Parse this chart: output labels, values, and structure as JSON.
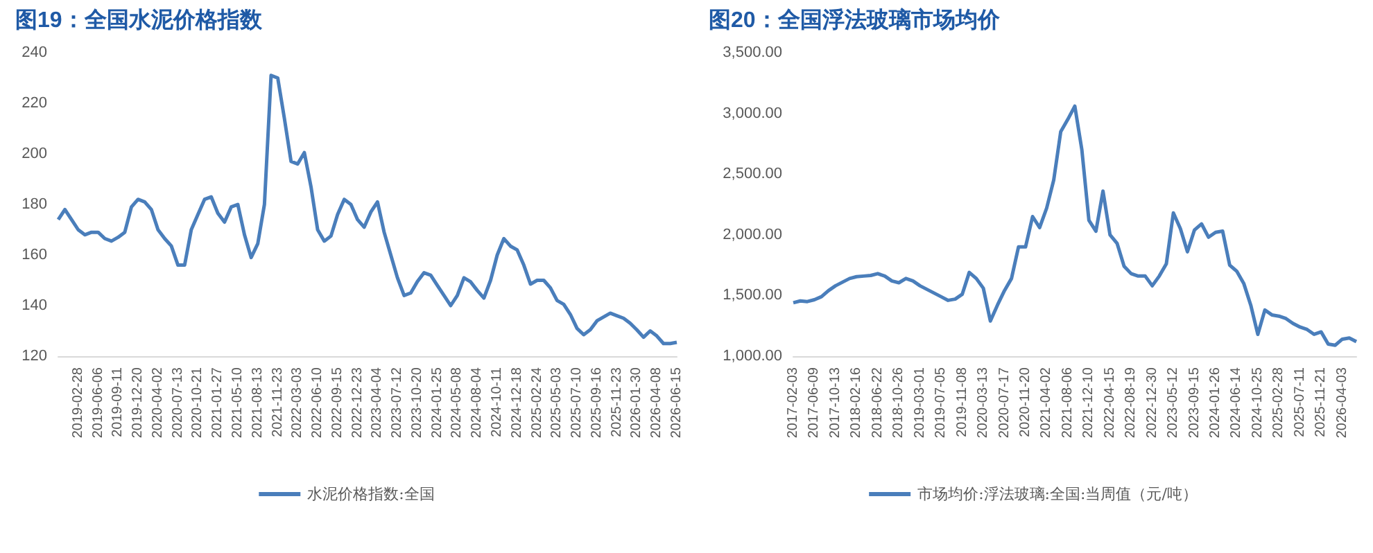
{
  "chart_data": [
    {
      "type": "line",
      "title": "图19：全国水泥价格指数",
      "categories": [
        null,
        null,
        null,
        "2019-02-28",
        null,
        null,
        "2019-06-06",
        null,
        null,
        "2019-09-11",
        null,
        null,
        "2019-12-20",
        null,
        null,
        "2020-04-02",
        null,
        null,
        "2020-07-13",
        null,
        null,
        "2020-10-21",
        null,
        null,
        "2021-01-27",
        null,
        null,
        "2021-05-10",
        null,
        null,
        "2021-08-13",
        null,
        null,
        "2021-11-23",
        null,
        null,
        "2022-03-03",
        null,
        null,
        "2022-06-10",
        null,
        null,
        "2022-09-15",
        null,
        null,
        "2022-12-23",
        null,
        null,
        "2023-04-04",
        null,
        null,
        "2023-07-12",
        null,
        null,
        "2023-10-20",
        null,
        null,
        "2024-01-25",
        null,
        null,
        "2024-05-08",
        null,
        null,
        "2024-08-04",
        null,
        null,
        "2024-10-11",
        null,
        null,
        "2024-12-18",
        null,
        null,
        "2025-02-24",
        null,
        null,
        "2025-05-03",
        null,
        null,
        "2025-07-10",
        null,
        null,
        "2025-09-16",
        null,
        null,
        "2025-11-23",
        null,
        null,
        "2026-01-30",
        null,
        null,
        "2026-04-08",
        null,
        null,
        "2026-06-15"
      ],
      "series": [
        {
          "name": "水泥价格指数:全国",
          "color": "#4a7ebb",
          "values": [
            174,
            178,
            174,
            170,
            168,
            169,
            169,
            166.5,
            165.5,
            167,
            169,
            179,
            182,
            181,
            178,
            170,
            166.5,
            163.6,
            156,
            156,
            170,
            176,
            182,
            183,
            176.5,
            173,
            179,
            180,
            168,
            159,
            164.5,
            180,
            231,
            230,
            214,
            197,
            196,
            200.5,
            187,
            170,
            165.5,
            167.5,
            176,
            182,
            180,
            174,
            171,
            177,
            181,
            169,
            160,
            151,
            144,
            145,
            149.5,
            153,
            152,
            148,
            144,
            140,
            144,
            151,
            149.4,
            146,
            143,
            150,
            160,
            166.5,
            163.5,
            162,
            156,
            148.5,
            150,
            150,
            147,
            142,
            140.5,
            136.5,
            131,
            128.5,
            130.5,
            134,
            135.5,
            137,
            136,
            135,
            133,
            130.4,
            127.5,
            130,
            128,
            125,
            125,
            125.5
          ]
        }
      ],
      "ylim": [
        120,
        240
      ],
      "yticks": [
        120,
        140,
        160,
        180,
        200,
        220,
        240
      ],
      "legend": "bottom",
      "marker": "none"
    },
    {
      "type": "line",
      "title": "图20：全国浮法玻璃市场均价",
      "categories": [
        "2017-02-03",
        null,
        null,
        "2017-06-09",
        null,
        null,
        "2017-10-13",
        null,
        null,
        "2018-02-16",
        null,
        null,
        "2018-06-22",
        null,
        null,
        "2018-10-26",
        null,
        null,
        "2019-03-01",
        null,
        null,
        "2019-07-05",
        null,
        null,
        "2019-11-08",
        null,
        null,
        "2020-03-13",
        null,
        null,
        "2020-07-17",
        null,
        null,
        "2020-11-20",
        null,
        null,
        "2021-04-02",
        null,
        null,
        "2021-08-06",
        null,
        null,
        "2021-12-10",
        null,
        null,
        "2022-04-15",
        null,
        null,
        "2022-08-19",
        null,
        null,
        "2022-12-30",
        null,
        null,
        "2023-05-12",
        null,
        null,
        "2023-09-15",
        null,
        null,
        "2024-01-26",
        null,
        null,
        "2024-06-14",
        null,
        null,
        "2024-10-25",
        null,
        null,
        "2025-02-28",
        null,
        null,
        "2025-07-11",
        null,
        null,
        "2025-11-21",
        null,
        null,
        "2026-04-03",
        null,
        null
      ],
      "series": [
        {
          "name": "市场均价:浮法玻璃:全国:当周值（元/吨）",
          "color": "#4a7ebb",
          "values": [
            1440,
            1455,
            1450,
            1465,
            1490,
            1540,
            1580,
            1610,
            1640,
            1655,
            1660,
            1665,
            1680,
            1660,
            1620,
            1605,
            1640,
            1620,
            1580,
            1550,
            1520,
            1490,
            1460,
            1470,
            1510,
            1690,
            1640,
            1560,
            1290,
            1420,
            1540,
            1640,
            1900,
            1900,
            2150,
            2060,
            2220,
            2450,
            2850,
            2950,
            3060,
            2700,
            2120,
            2030,
            2360,
            2000,
            1930,
            1740,
            1680,
            1660,
            1660,
            1580,
            1660,
            1760,
            2180,
            2050,
            1860,
            2040,
            2090,
            1980,
            2020,
            2030,
            1750,
            1700,
            1600,
            1420,
            1180,
            1380,
            1340,
            1330,
            1310,
            1270,
            1240,
            1220,
            1180,
            1200,
            1100,
            1090,
            1140,
            1150,
            1120
          ]
        }
      ],
      "ylim": [
        1000,
        3500
      ],
      "yticks": [
        {
          "value": 1000,
          "label": "1,000.00"
        },
        {
          "value": 1500,
          "label": "1,500.00"
        },
        {
          "value": 2000,
          "label": "2,000.00"
        },
        {
          "value": 2500,
          "label": "2,500.00"
        },
        {
          "value": 3000,
          "label": "3,000.00"
        },
        {
          "value": 3500,
          "label": "3,500.00"
        }
      ],
      "legend": "bottom",
      "marker": "none"
    }
  ]
}
